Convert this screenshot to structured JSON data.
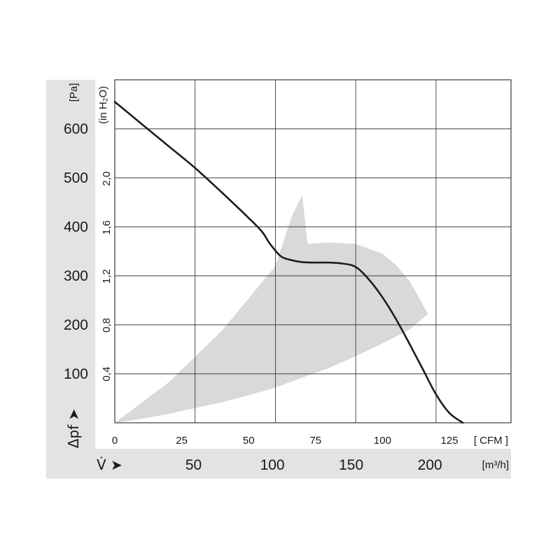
{
  "chart_data": {
    "type": "line",
    "x_primary": {
      "unit": "[ CFM ]",
      "range": [
        0,
        148
      ],
      "ticks": [
        0,
        25,
        50,
        75,
        100,
        125
      ],
      "tick_labels": [
        "0",
        "25",
        "50",
        "75",
        "100",
        "125"
      ]
    },
    "x_secondary": {
      "symbol": "V̇ ➤",
      "unit": "[m³/h]",
      "ticks": [
        50,
        100,
        150,
        200
      ],
      "tick_labels": [
        "50",
        "100",
        "150",
        "200"
      ]
    },
    "y_primary": {
      "symbol": "Δpf ➤",
      "unit": "[Pa]",
      "range": [
        0,
        700
      ],
      "ticks": [
        100,
        200,
        300,
        400,
        500,
        600
      ],
      "tick_labels": [
        "100",
        "200",
        "300",
        "400",
        "500",
        "600"
      ]
    },
    "y_secondary": {
      "unit": "(in H₂O)",
      "ticks": [
        0.4,
        0.8,
        1.2,
        1.6,
        2.0
      ],
      "tick_labels": [
        "0,4",
        "0,8",
        "1,2",
        "1,6",
        "2,0"
      ]
    },
    "grid": true,
    "series": [
      {
        "color": "#1c1c1c",
        "x": [
          0,
          10,
          20,
          30,
          40,
          50,
          55,
          58,
          62,
          66,
          70,
          75,
          80,
          85,
          90,
          95,
          100,
          105,
          110,
          115,
          120,
          125,
          130
        ],
        "y": [
          655,
          610,
          565,
          520,
          470,
          418,
          390,
          365,
          340,
          332,
          328,
          327,
          327,
          325,
          318,
          292,
          256,
          212,
          162,
          110,
          58,
          20,
          0
        ]
      }
    ],
    "shaded_region": {
      "color": "#d9d9d9",
      "x": [
        0,
        20,
        40,
        60,
        66,
        70,
        72,
        80,
        90,
        100,
        105,
        110,
        113,
        117,
        110,
        100,
        90,
        80,
        70,
        60,
        50,
        40,
        30,
        20,
        10,
        0
      ],
      "y": [
        0,
        82,
        188,
        320,
        420,
        465,
        365,
        368,
        365,
        345,
        322,
        290,
        262,
        222,
        190,
        162,
        136,
        112,
        92,
        72,
        56,
        42,
        30,
        18,
        8,
        0
      ]
    }
  }
}
